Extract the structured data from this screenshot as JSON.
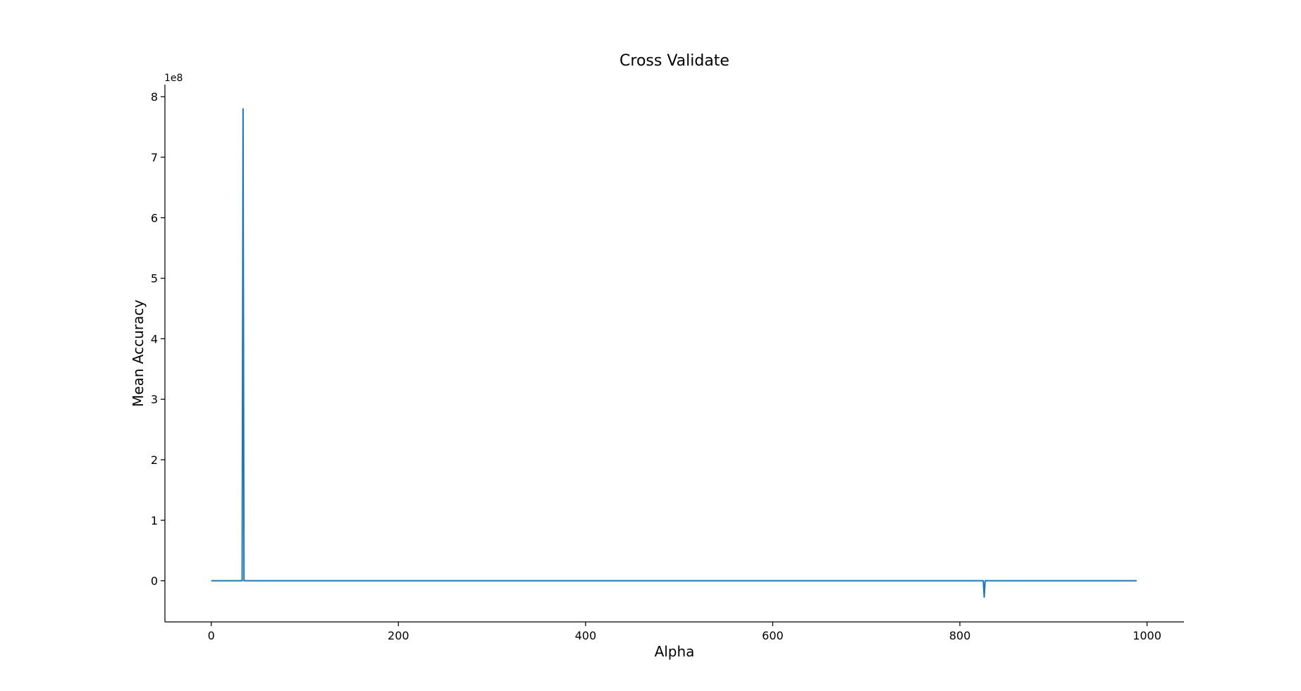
{
  "chart_data": {
    "type": "line",
    "title": "Cross Validate",
    "xlabel": "Alpha",
    "ylabel": "Mean Accuracy",
    "y_offset_label": "1e8",
    "y_scale": 100000000,
    "xlim": [
      -49.5,
      1039.5
    ],
    "ylim": [
      -68000000,
      820000000
    ],
    "x_ticks": [
      0,
      200,
      400,
      600,
      800,
      1000
    ],
    "y_ticks": [
      0,
      1,
      2,
      3,
      4,
      5,
      6,
      7,
      8
    ],
    "grid": false,
    "spines": [
      "left",
      "bottom"
    ],
    "series": [
      {
        "color": "#1f77b4",
        "x": [
          0,
          1,
          2,
          3,
          4,
          5,
          6,
          7,
          8,
          9,
          10,
          11,
          12,
          13,
          14,
          15,
          16,
          17,
          18,
          19,
          20,
          21,
          22,
          23,
          24,
          25,
          26,
          27,
          28,
          29,
          30,
          31,
          32,
          33,
          34,
          35,
          36,
          37,
          38,
          39,
          40,
          41,
          42,
          43,
          44,
          45,
          46,
          47,
          48,
          49,
          50,
          100,
          200,
          300,
          400,
          500,
          600,
          700,
          800,
          820,
          821,
          822,
          823,
          824,
          825,
          826,
          827,
          828,
          829,
          830,
          831,
          832,
          833,
          834,
          835,
          900,
          950,
          989
        ],
        "values": [
          0.93,
          0.93,
          0.93,
          0.93,
          0.93,
          0.93,
          0.93,
          0.93,
          0.93,
          0.93,
          0.93,
          0.93,
          0.93,
          0.93,
          0.93,
          0.93,
          0.93,
          0.93,
          0.93,
          0.93,
          0.93,
          0.93,
          0.93,
          0.93,
          0.93,
          0.93,
          0.93,
          0.93,
          0.93,
          0.93,
          0.93,
          0.93,
          0.93,
          0.93,
          780000000,
          0.93,
          0.93,
          0.93,
          0.93,
          0.93,
          0.93,
          0.93,
          0.93,
          0.93,
          0.93,
          0.93,
          0.93,
          0.93,
          0.93,
          0.93,
          0.93,
          0.93,
          0.93,
          0.93,
          0.93,
          0.93,
          0.93,
          0.93,
          0.93,
          0.93,
          0.93,
          0.93,
          0.93,
          0.93,
          0.93,
          -27000000,
          0.93,
          0.93,
          0.93,
          0.93,
          0.93,
          0.93,
          0.93,
          0.93,
          0.93,
          0.93,
          0.93,
          0.93
        ]
      }
    ]
  }
}
